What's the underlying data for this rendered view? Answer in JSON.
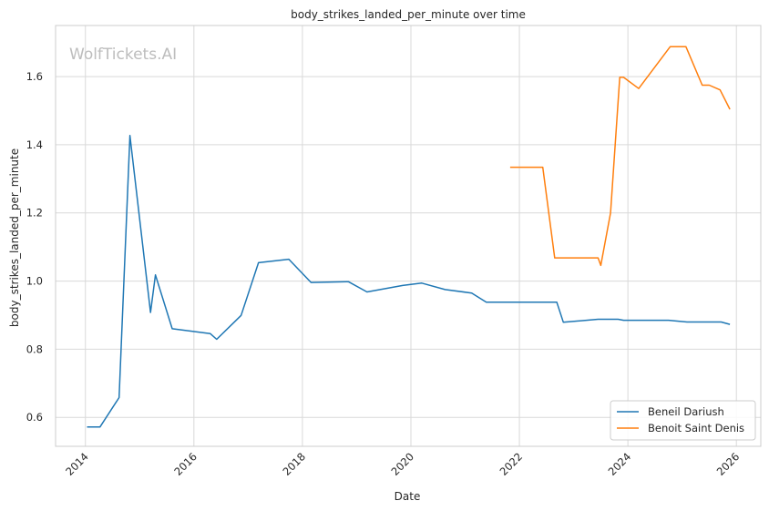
{
  "chart_data": {
    "type": "line",
    "title": "body_strikes_landed_per_minute over time",
    "xlabel": "Date",
    "ylabel": "body_strikes_landed_per_minute",
    "watermark": "WolfTickets.AI",
    "xlim": [
      2013.45,
      2026.45
    ],
    "ylim": [
      0.515,
      1.75
    ],
    "x_ticks": [
      2014,
      2016,
      2018,
      2020,
      2022,
      2024,
      2026
    ],
    "x_tick_labels": [
      "2014",
      "2016",
      "2018",
      "2020",
      "2022",
      "2024",
      "2026"
    ],
    "y_ticks": [
      0.6,
      0.8,
      1.0,
      1.2,
      1.4,
      1.6
    ],
    "y_tick_labels": [
      "0.6",
      "0.8",
      "1.0",
      "1.2",
      "1.4",
      "1.6"
    ],
    "grid": true,
    "legend_position": "bottom-right",
    "series": [
      {
        "name": "Beneil Dariush",
        "color": "#1f77b4",
        "points": [
          [
            2014.03,
            0.572
          ],
          [
            2014.27,
            0.572
          ],
          [
            2014.62,
            0.658
          ],
          [
            2014.82,
            1.427
          ],
          [
            2015.2,
            0.908
          ],
          [
            2015.29,
            1.018
          ],
          [
            2015.6,
            0.86
          ],
          [
            2016.3,
            0.846
          ],
          [
            2016.42,
            0.829
          ],
          [
            2016.87,
            0.899
          ],
          [
            2017.19,
            1.054
          ],
          [
            2017.75,
            1.064
          ],
          [
            2018.16,
            0.996
          ],
          [
            2018.85,
            0.998
          ],
          [
            2019.19,
            0.968
          ],
          [
            2019.85,
            0.987
          ],
          [
            2020.2,
            0.994
          ],
          [
            2020.63,
            0.975
          ],
          [
            2021.12,
            0.965
          ],
          [
            2021.39,
            0.938
          ],
          [
            2022.69,
            0.938
          ],
          [
            2022.81,
            0.879
          ],
          [
            2023.45,
            0.888
          ],
          [
            2023.82,
            0.888
          ],
          [
            2023.92,
            0.885
          ],
          [
            2024.75,
            0.885
          ],
          [
            2025.09,
            0.88
          ],
          [
            2025.72,
            0.88
          ],
          [
            2025.88,
            0.873
          ]
        ]
      },
      {
        "name": "Benoit Saint Denis",
        "color": "#ff7f0e",
        "points": [
          [
            2021.83,
            1.334
          ],
          [
            2022.43,
            1.334
          ],
          [
            2022.65,
            1.068
          ],
          [
            2023.45,
            1.068
          ],
          [
            2023.5,
            1.046
          ],
          [
            2023.68,
            1.2
          ],
          [
            2023.85,
            1.598
          ],
          [
            2023.92,
            1.598
          ],
          [
            2024.2,
            1.565
          ],
          [
            2024.78,
            1.688
          ],
          [
            2025.07,
            1.688
          ],
          [
            2025.37,
            1.575
          ],
          [
            2025.5,
            1.575
          ],
          [
            2025.7,
            1.561
          ],
          [
            2025.88,
            1.504
          ]
        ]
      }
    ]
  }
}
